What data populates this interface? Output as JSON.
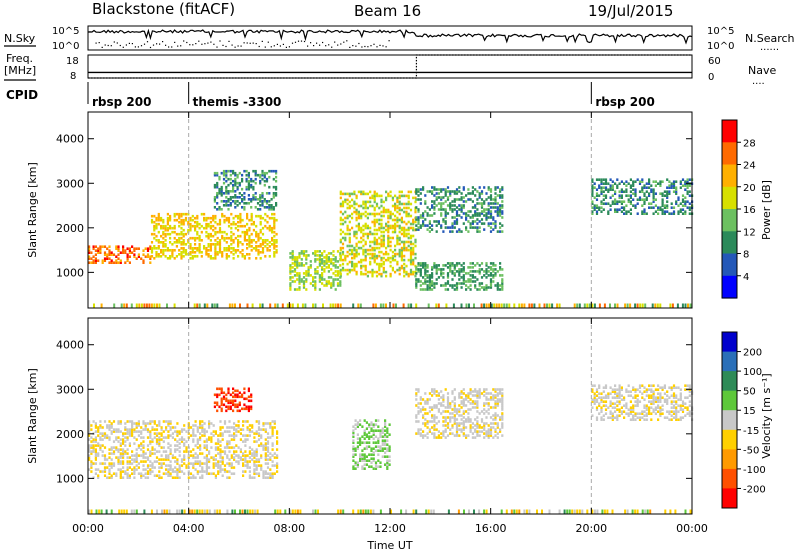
{
  "header": {
    "radar": "Blackstone (fitACF)",
    "beam": "Beam 16",
    "date": "19/Jul/2015"
  },
  "top_panels": {
    "nsky": {
      "left_label": "N.Sky",
      "left_ticks": [
        "10^5",
        "10^0"
      ],
      "right_ticks": [
        "10^5",
        "10^0"
      ],
      "right_label": "N.Search",
      "right_legend": "......"
    },
    "freq": {
      "left_label_1": "Freq.",
      "left_label_2": "[MHz]",
      "left_ticks": [
        "18",
        "8"
      ],
      "right_ticks": [
        "60",
        "0"
      ],
      "right_label": "Nave",
      "right_legend": "....",
      "freq_steps": [
        {
          "time": 0,
          "value": 10.4
        },
        {
          "time": 13.05,
          "value": 10.4
        }
      ],
      "nave_steps": [
        {
          "time": 0,
          "value": 0
        },
        {
          "time": 13.05,
          "value": 60
        },
        {
          "time": 24,
          "value": 60
        }
      ]
    },
    "cpid": {
      "label": "CPID",
      "modes": [
        {
          "text": "rbsp 200",
          "start": 0
        },
        {
          "text": "themis -3300",
          "start": 4.0
        },
        {
          "text": "rbsp 200",
          "start": 20.0
        }
      ]
    }
  },
  "x_axis": {
    "label": "Time UT",
    "ticks": [
      "00:00",
      "04:00",
      "08:00",
      "12:00",
      "16:00",
      "20:00",
      "00:00"
    ],
    "range_hours": [
      0,
      24
    ]
  },
  "power_panel": {
    "ylabel": "Slant Range [km]",
    "yticks": [
      "4000",
      "3000",
      "2000",
      "1000"
    ],
    "colorbar": {
      "label": "Power [dB]",
      "ticks": [
        "28",
        "24",
        "20",
        "16",
        "12",
        "8",
        "4"
      ],
      "colors": [
        "#ff0000",
        "#ff6a00",
        "#ffb000",
        "#d7e000",
        "#6cc060",
        "#2b8a5a",
        "#2458b8",
        "#0000ff"
      ]
    }
  },
  "velocity_panel": {
    "ylabel": "Slant Range [km]",
    "yticks": [
      "4000",
      "3000",
      "2000",
      "1000"
    ],
    "colorbar": {
      "label": "Velocity [m s⁻¹]",
      "ticks": [
        "200",
        "100",
        "50",
        "15",
        "-15",
        "-50",
        "-100",
        "-200"
      ],
      "colors": [
        "#0000cc",
        "#2a6fb8",
        "#2e8b57",
        "#5ec83a",
        "#c8c8c8",
        "#ffd000",
        "#ff9a00",
        "#ff5000",
        "#ff0000"
      ]
    }
  },
  "chart_data": {
    "type": "heatmap",
    "title": "Blackstone (fitACF)",
    "xlabel": "Time UT",
    "ylabel": "Slant Range [km]",
    "xlim": [
      0,
      24
    ],
    "ylim": [
      200,
      4600
    ],
    "power_echo_bands": [
      {
        "t0": 0.0,
        "t1": 2.5,
        "r0": 1200,
        "r1": 1600,
        "power": 24
      },
      {
        "t0": 2.5,
        "t1": 7.5,
        "r0": 1300,
        "r1": 2300,
        "power": 18
      },
      {
        "t0": 5.0,
        "t1": 7.5,
        "r0": 2400,
        "r1": 3300,
        "power": 8
      },
      {
        "t0": 8.0,
        "t1": 10.0,
        "r0": 600,
        "r1": 1500,
        "power": 14
      },
      {
        "t0": 10.0,
        "t1": 13.0,
        "r0": 900,
        "r1": 2800,
        "power": 16
      },
      {
        "t0": 13.0,
        "t1": 16.5,
        "r0": 600,
        "r1": 1200,
        "power": 10
      },
      {
        "t0": 13.0,
        "t1": 16.5,
        "r0": 1900,
        "r1": 2900,
        "power": 8
      },
      {
        "t0": 20.0,
        "t1": 24.0,
        "r0": 2300,
        "r1": 3100,
        "power": 8
      }
    ],
    "velocity_echo_bands": [
      {
        "t0": 0.0,
        "t1": 7.5,
        "r0": 1000,
        "r1": 2300,
        "velocity": -10
      },
      {
        "t0": 5.0,
        "t1": 6.5,
        "r0": 2500,
        "r1": 3000,
        "velocity": -200
      },
      {
        "t0": 10.5,
        "t1": 12.0,
        "r0": 1200,
        "r1": 2300,
        "velocity": 20
      },
      {
        "t0": 13.0,
        "t1": 16.5,
        "r0": 1900,
        "r1": 3000,
        "velocity": -5
      },
      {
        "t0": 20.0,
        "t1": 24.0,
        "r0": 2300,
        "r1": 3100,
        "velocity": -5
      }
    ]
  }
}
